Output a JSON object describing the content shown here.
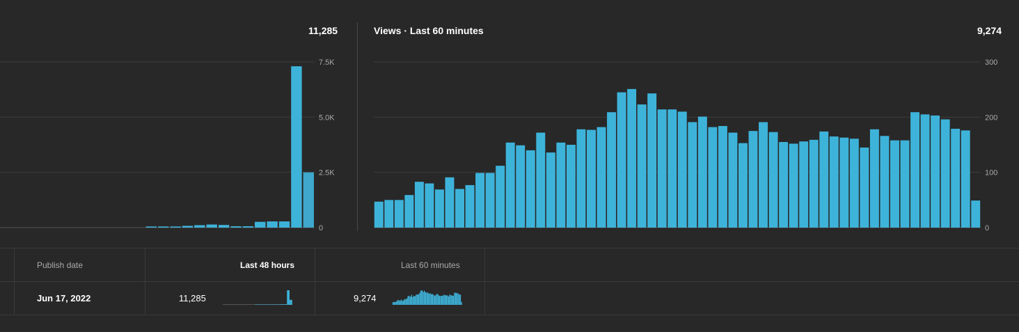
{
  "left_chart": {
    "total": "11,285",
    "chart_data": {
      "type": "bar",
      "ylim": [
        0,
        8000
      ],
      "yticks": [
        "7.5K",
        "5.0K",
        "2.5K",
        "0"
      ],
      "ytick_values": [
        7500,
        5000,
        2500,
        0
      ],
      "values": [
        0,
        0,
        0,
        0,
        0,
        0,
        0,
        0,
        0,
        0,
        0,
        0,
        50,
        50,
        50,
        80,
        110,
        140,
        120,
        60,
        60,
        260,
        280,
        280,
        7300,
        2500
      ],
      "colors": [
        "#3eb3da",
        "#3ea7cb"
      ]
    }
  },
  "right_chart": {
    "title": "Views · Last 60 minutes",
    "total": "9,274",
    "chart_data": {
      "type": "bar",
      "ylim": [
        0,
        300
      ],
      "yticks": [
        "300",
        "200",
        "100",
        "0"
      ],
      "ytick_values": [
        300,
        200,
        100,
        0
      ],
      "values": [
        47,
        50,
        50,
        59,
        83,
        80,
        69,
        91,
        70,
        77,
        99,
        99,
        112,
        154,
        149,
        140,
        172,
        136,
        154,
        150,
        178,
        177,
        182,
        209,
        245,
        251,
        223,
        243,
        214,
        214,
        210,
        191,
        201,
        182,
        184,
        172,
        153,
        175,
        191,
        173,
        155,
        152,
        156,
        159,
        174,
        165,
        163,
        161,
        145,
        178,
        166,
        158,
        158,
        209,
        205,
        203,
        196,
        179,
        176,
        49
      ],
      "color": "#3eb3da"
    }
  },
  "table": {
    "headers": {
      "publish_date": "Publish date",
      "last_48_hours": "Last 48 hours",
      "last_60_minutes": "Last 60 minutes"
    },
    "row": {
      "publish_date": "Jun 17, 2022",
      "last_48_hours_value": "11,285",
      "last_60_minutes_value": "9,274"
    }
  }
}
